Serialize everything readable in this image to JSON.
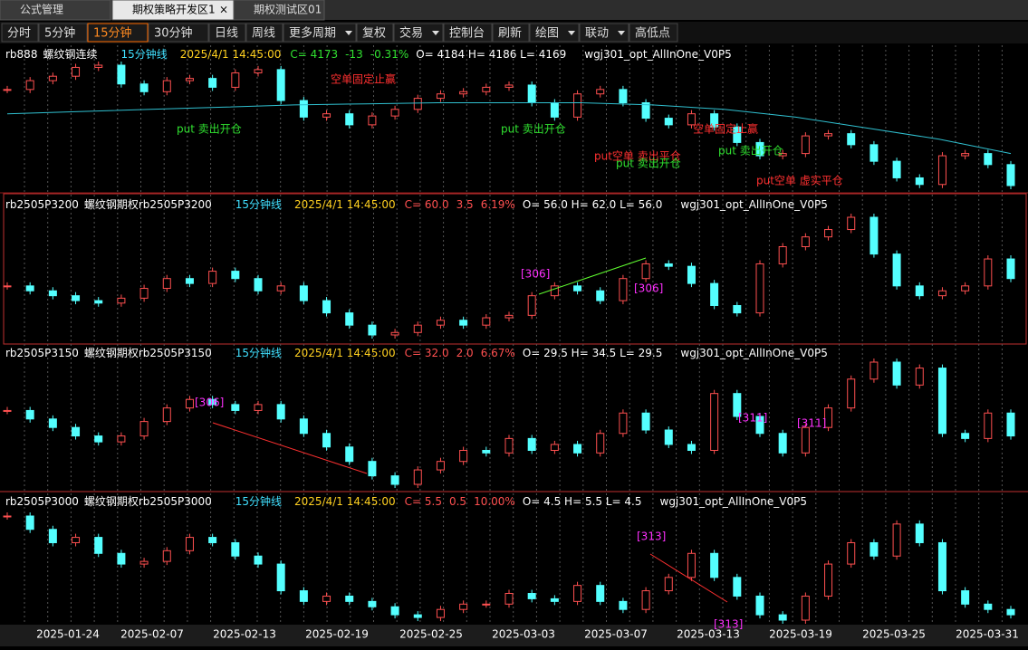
{
  "tabs": [
    "公式管理",
    "期权策略开发区1",
    "期权测试区01"
  ],
  "toolbar": [
    "分时",
    "5分钟",
    "15分钟",
    "30分钟",
    "日线",
    "周线",
    "更多周期",
    "复权",
    "交易",
    "控制台",
    "刷新",
    "绘图",
    "联动",
    "高低点"
  ],
  "panels": [
    {
      "symbol": "rb888",
      "name": "螺纹钢连续",
      "period": "15分钟线",
      "time": "2025/4/1 14:45:00",
      "close": "C= 4173",
      "change": "-13",
      "pct": "-0.31%",
      "ohlc": "O= 4184  H= 4186  L= 4169",
      "indicator": "wgj301_opt_AllInOne_V0P5",
      "trace": [
        4260,
        4268,
        4272,
        4280,
        4282,
        4265,
        4258,
        4268,
        4270,
        4262,
        4275,
        4278,
        4250,
        4235,
        4238,
        4228,
        4236,
        4242,
        4252,
        4256,
        4258,
        4262,
        4264,
        4248,
        4235,
        4256,
        4260,
        4248,
        4234,
        4228,
        4238,
        4226,
        4212,
        4200,
        4202,
        4218,
        4220,
        4210,
        4195,
        4180,
        4174,
        4200,
        4202,
        4192,
        4173
      ],
      "ma": [
        4238,
        4240,
        4242,
        4244,
        4246,
        4247,
        4248,
        4248,
        4248,
        4246,
        4242,
        4235,
        4225,
        4215,
        4202
      ]
    },
    {
      "symbol": "rb2505P3200",
      "name": "螺纹钢期权rb2505P3200",
      "period": "15分钟线",
      "time": "2025/4/1 14:45:00",
      "close": "C= 60.0",
      "change": "3.5",
      "pct": "6.19%",
      "ohlc": "O= 56.0  H= 62.0  L= 56.0",
      "indicator": "wgj301_opt_AllInOne_V0P5",
      "trace": [
        58.8,
        58,
        57.2,
        56.4,
        56,
        56.8,
        58.4,
        60,
        59.2,
        61.2,
        60,
        58,
        58.8,
        56.4,
        54.4,
        52.4,
        50.8,
        51.2,
        52.4,
        53.2,
        52.4,
        53.6,
        54,
        57.2,
        58.8,
        58,
        56.4,
        60,
        62.4,
        62,
        59.2,
        55.6,
        54.4,
        62.4,
        65.2,
        66.8,
        68,
        70,
        64,
        58.8,
        57.2,
        58,
        58.8,
        63.2,
        60
      ]
    },
    {
      "symbol": "rb2505P3150",
      "name": "螺纹钢期权rb2505P3150",
      "period": "15分钟线",
      "time": "2025/4/1 14:45:00",
      "close": "C= 32.0",
      "change": "2.0",
      "pct": "6.67%",
      "ohlc": "O= 29.5  H= 34.5  L= 29.5",
      "indicator": "wgj301_opt_AllInOne_V0P5",
      "trace": [
        35,
        34,
        33,
        32,
        31.3,
        32,
        33.7,
        35.3,
        36.3,
        35.7,
        35,
        35.7,
        34,
        32.3,
        30.7,
        29,
        27.3,
        26.3,
        28,
        29,
        30.3,
        30,
        31.7,
        30.3,
        31,
        30,
        32.3,
        34.7,
        32.7,
        31,
        30.3,
        37,
        34.3,
        32.3,
        30,
        33,
        35.3,
        38.7,
        40.7,
        38,
        40,
        32.3,
        31.7,
        34.7,
        32
      ]
    },
    {
      "symbol": "rb2505P3000",
      "name": "螺纹钢期权rb2505P3000",
      "period": "15分钟线",
      "time": "2025/4/1 14:45:00",
      "close": "C= 5.5",
      "change": "0.5",
      "pct": "10.00%",
      "ohlc": "O= 4.5  H= 5.5  L= 4.5",
      "indicator": "wgj301_opt_AllInOne_V0P5",
      "trace": [
        9.2,
        8.7,
        8.2,
        8.4,
        7.8,
        7.4,
        7.5,
        7.9,
        8.4,
        8.2,
        7.7,
        7.4,
        6.4,
        6,
        6.2,
        6,
        5.8,
        5.5,
        5.4,
        5.7,
        5.9,
        5.9,
        6.3,
        6.1,
        6,
        6.6,
        6,
        5.7,
        6.4,
        6.9,
        7.8,
        6.9,
        6.2,
        5.5,
        5.3,
        6.2,
        7.4,
        8.2,
        7.7,
        8.9,
        8.2,
        6.4,
        5.9,
        5.7,
        5.5
      ]
    }
  ],
  "annotations": {
    "panel1": [
      "空单固定止赢",
      "put 卖出开仓",
      "put 卖出开仓",
      "put空单 卖出平仓",
      "put 卖出开仓",
      "空单固定止赢",
      "put 卖出开仓",
      "put空单 虚实平仓"
    ],
    "panel2": [
      "[306]",
      "[306]"
    ],
    "panel3": [
      "[306]",
      "[311]",
      "[311]"
    ],
    "panel4": [
      "[313]",
      "[313]"
    ]
  },
  "dates": [
    "2025-01-24",
    "2025-02-07",
    "2025-02-13",
    "2025-02-19",
    "2025-02-25",
    "2025-03-03",
    "2025-03-07",
    "2025-03-13",
    "2025-03-19",
    "2025-03-25",
    "2025-03-31"
  ]
}
